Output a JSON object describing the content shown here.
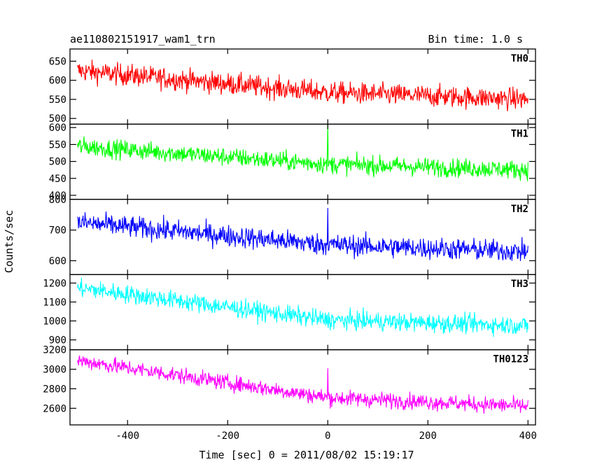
{
  "header": {
    "title": "ae110802151917_wam1_trn",
    "bin_time": "Bin time: 1.0 s"
  },
  "chart_data": {
    "type": "line",
    "title": "ae110802151917_wam1_trn",
    "xlabel": "Time [sec] 0 = 2011/08/02 15:19:17",
    "ylabel": "Counts/sec",
    "xlim": [
      -515,
      415
    ],
    "x_ticks": [
      -400,
      -200,
      0,
      200,
      400
    ],
    "grid": false,
    "panels": [
      {
        "name": "TH0",
        "color": "#ff0000",
        "ylim": [
          485,
          682
        ],
        "y_ticks": [
          500,
          550,
          600,
          650
        ],
        "trend": [
          {
            "x": -500,
            "y": 625
          },
          {
            "x": 0,
            "y": 568
          },
          {
            "x": 400,
            "y": 550
          }
        ],
        "noise_amplitude": 28,
        "spike": null
      },
      {
        "name": "TH1",
        "color": "#00ff00",
        "ylim": [
          388,
          610
        ],
        "y_ticks": [
          400,
          450,
          500,
          550,
          600
        ],
        "trend": [
          {
            "x": -500,
            "y": 545
          },
          {
            "x": 0,
            "y": 492
          },
          {
            "x": 400,
            "y": 475
          }
        ],
        "noise_amplitude": 27,
        "spike": {
          "x": 0,
          "y": 608
        }
      },
      {
        "name": "TH2",
        "color": "#0000ff",
        "ylim": [
          555,
          800
        ],
        "y_ticks": [
          600,
          700,
          800
        ],
        "trend": [
          {
            "x": -500,
            "y": 725
          },
          {
            "x": 0,
            "y": 652
          },
          {
            "x": 400,
            "y": 630
          }
        ],
        "noise_amplitude": 35,
        "spike": {
          "x": 0,
          "y": 772
        }
      },
      {
        "name": "TH3",
        "color": "#00ffff",
        "ylim": [
          848,
          1245
        ],
        "y_ticks": [
          900,
          1000,
          1100,
          1200
        ],
        "trend": [
          {
            "x": -500,
            "y": 1175
          },
          {
            "x": 0,
            "y": 1005
          },
          {
            "x": 400,
            "y": 975
          }
        ],
        "noise_amplitude": 48,
        "spike": null
      },
      {
        "name": "TH0123",
        "color": "#ff00ff",
        "ylim": [
          2430,
          3200
        ],
        "y_ticks": [
          2600,
          2800,
          3000,
          3200
        ],
        "trend": [
          {
            "x": -500,
            "y": 3090
          },
          {
            "x": 0,
            "y": 2710
          },
          {
            "x": 400,
            "y": 2620
          }
        ],
        "noise_amplitude": 80,
        "spike": {
          "x": 0,
          "y": 3010
        }
      }
    ]
  }
}
